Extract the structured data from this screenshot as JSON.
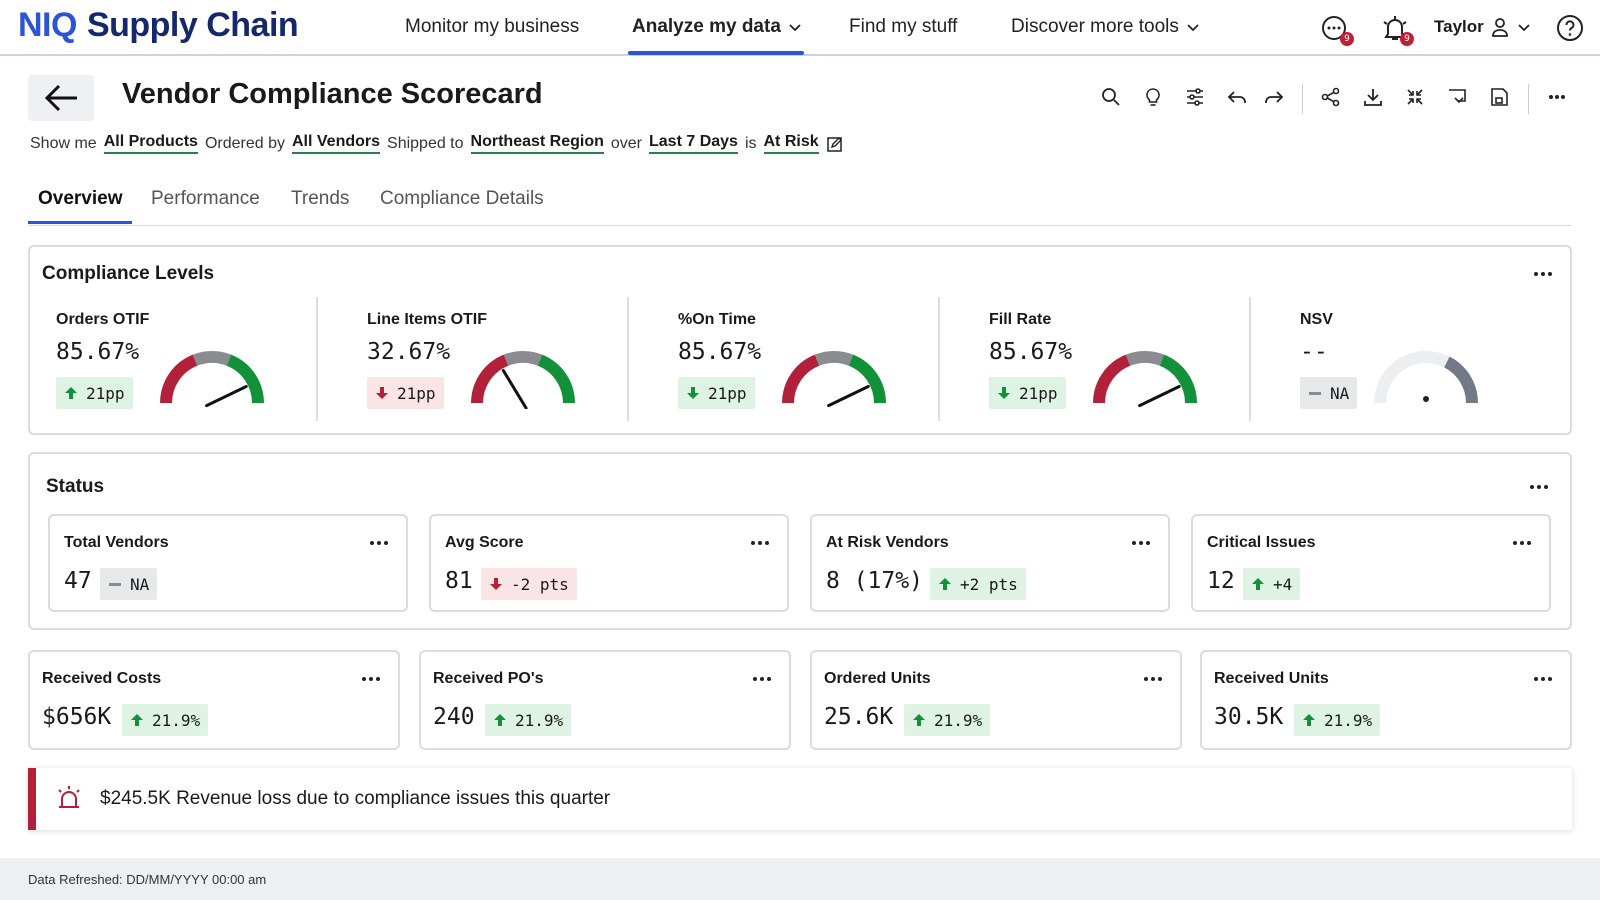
{
  "brand": {
    "prefix": "NIQ",
    "name": "Supply Chain"
  },
  "nav": {
    "items": [
      {
        "label": "Monitor my business"
      },
      {
        "label": "Analyze my data"
      },
      {
        "label": "Find my stuff"
      },
      {
        "label": "Discover more tools"
      }
    ],
    "badges": {
      "messages": "9",
      "alerts": "9"
    },
    "user": "Taylor"
  },
  "page": {
    "title": "Vendor Compliance Scorecard"
  },
  "filters": {
    "show_me": "Show me",
    "products": "All Products",
    "ordered_by": "Ordered by",
    "vendors": "All Vendors",
    "shipped_to": "Shipped to",
    "region": "Northeast Region",
    "over": "over",
    "period": "Last 7 Days",
    "is": "is",
    "status": "At Risk"
  },
  "tabs": [
    {
      "label": "Overview"
    },
    {
      "label": "Performance"
    },
    {
      "label": "Trends"
    },
    {
      "label": "Compliance Details"
    }
  ],
  "compliance": {
    "title": "Compliance Levels",
    "gauges": [
      {
        "label": "Orders OTIF",
        "value": "85.67%",
        "delta": "21pp",
        "direction": "up",
        "level": 0.8567
      },
      {
        "label": "Line Items OTIF",
        "value": "32.67%",
        "delta": "21pp",
        "direction": "down",
        "level": 0.3267
      },
      {
        "label": "%On Time",
        "value": "85.67%",
        "delta": "21pp",
        "direction": "down-green",
        "level": 0.8567
      },
      {
        "label": "Fill Rate",
        "value": "85.67%",
        "delta": "21pp",
        "direction": "down-green",
        "level": 0.8567
      },
      {
        "label": "NSV",
        "value": "--",
        "delta": "NA",
        "direction": "na",
        "level": null
      }
    ]
  },
  "status": {
    "title": "Status",
    "cards": [
      {
        "label": "Total Vendors",
        "value": "47",
        "delta": "NA",
        "direction": "na"
      },
      {
        "label": "Avg Score",
        "value": "81",
        "delta": "-2 pts",
        "direction": "down"
      },
      {
        "label": "At Risk Vendors",
        "value": "8 (17%)",
        "delta": "+2 pts",
        "direction": "up"
      },
      {
        "label": "Critical Issues",
        "value": "12",
        "delta": "+4",
        "direction": "up"
      }
    ]
  },
  "metrics": [
    {
      "label": "Received Costs",
      "value": "$656K",
      "delta": "21.9%",
      "direction": "up"
    },
    {
      "label": "Received PO's",
      "value": "240",
      "delta": "21.9%",
      "direction": "up"
    },
    {
      "label": "Ordered Units",
      "value": "25.6K",
      "delta": "21.9%",
      "direction": "up"
    },
    {
      "label": "Received Units",
      "value": "30.5K",
      "delta": "21.9%",
      "direction": "up"
    }
  ],
  "alert": {
    "text": "$245.5K Revenue loss due to compliance issues this quarter"
  },
  "footer": {
    "refreshed": "Data Refreshed: DD/MM/YYYY 00:00 am"
  },
  "colors": {
    "brand": "#2b54d8",
    "good": "#12913a",
    "bad": "#b3203a",
    "neutral": "#8a8c90"
  }
}
